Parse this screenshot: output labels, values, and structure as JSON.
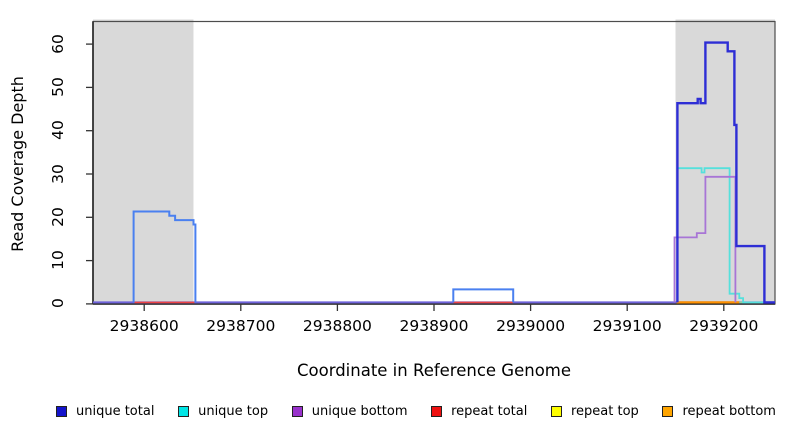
{
  "chart_data": {
    "type": "line",
    "subtype": "step-coverage",
    "title": "",
    "xlabel": "Coordinate in Reference Genome",
    "ylabel": "Read Coverage Depth",
    "xlim": [
      2938547,
      2939253
    ],
    "ylim": [
      0,
      60
    ],
    "xticks": [
      2938600,
      2938700,
      2938800,
      2938900,
      2939000,
      2939100,
      2939200
    ],
    "yticks": [
      0,
      10,
      20,
      30,
      40,
      50,
      60
    ],
    "grid": false,
    "legend_position": "bottom",
    "background_color": "#ffffff",
    "shading_color": "#d9d9d9",
    "shaded_regions": [
      {
        "name": "left-repeat-region",
        "x0": 2938547,
        "x1": 2938651
      },
      {
        "name": "right-repeat-region",
        "x0": 2939150,
        "x1": 2939253
      }
    ],
    "legend": [
      {
        "label": "unique total",
        "color": "#1414cc"
      },
      {
        "label": "unique top",
        "color": "#00e5e5"
      },
      {
        "label": "unique bottom",
        "color": "#9932cc"
      },
      {
        "label": "repeat total",
        "color": "#ee1111"
      },
      {
        "label": "repeat top",
        "color": "#ffff00"
      },
      {
        "label": "repeat bottom",
        "color": "#ffa500"
      }
    ],
    "lines": [
      {
        "name": "unique-bottom-baseline",
        "series": "unique bottom",
        "color": "#6e62d9",
        "width": 2,
        "points": [
          [
            2938547,
            0
          ],
          [
            2939253,
            0
          ]
        ]
      },
      {
        "name": "repeat-total-left-zero",
        "series": "repeat total",
        "color": "#ee4444",
        "width": 1.6,
        "points": [
          [
            2938590,
            0
          ],
          [
            2938652,
            0
          ]
        ]
      },
      {
        "name": "repeat-total-mid-zero",
        "series": "repeat total",
        "color": "#ee4444",
        "width": 1.6,
        "points": [
          [
            2938920,
            0
          ],
          [
            2938982,
            0
          ]
        ]
      },
      {
        "name": "repeat-bottom-right-zero",
        "series": "repeat bottom",
        "color": "#ff9100",
        "width": 2.2,
        "points": [
          [
            2939151,
            0
          ],
          [
            2939216,
            0
          ]
        ]
      },
      {
        "name": "zero-line-green-segment",
        "series": "repeat top",
        "color": "#8fd79a",
        "width": 1.6,
        "points": [
          [
            2939216,
            0
          ],
          [
            2939243,
            0
          ]
        ]
      },
      {
        "name": "unique-top-right",
        "series": "unique top",
        "color": "#55e0dc",
        "width": 1.8,
        "points": [
          [
            2939152,
            0
          ],
          [
            2939152,
            31
          ],
          [
            2939177,
            31
          ],
          [
            2939177,
            30
          ],
          [
            2939180,
            30
          ],
          [
            2939180,
            31
          ],
          [
            2939206,
            31
          ],
          [
            2939206,
            2
          ],
          [
            2939216,
            2
          ],
          [
            2939216,
            1
          ],
          [
            2939220,
            1
          ],
          [
            2939220,
            0
          ],
          [
            2939243,
            0
          ]
        ]
      },
      {
        "name": "unique-bottom-right",
        "series": "unique bottom",
        "color": "#a875d6",
        "width": 1.8,
        "points": [
          [
            2939149,
            0
          ],
          [
            2939149,
            15
          ],
          [
            2939172,
            15
          ],
          [
            2939172,
            16
          ],
          [
            2939181,
            16
          ],
          [
            2939181,
            29
          ],
          [
            2939212,
            29
          ],
          [
            2939212,
            0
          ]
        ]
      },
      {
        "name": "unique-total-left-hump",
        "series": "unique total",
        "color": "#4a80f0",
        "width": 2,
        "points": [
          [
            2938589,
            0
          ],
          [
            2938589,
            21
          ],
          [
            2938626,
            21
          ],
          [
            2938626,
            20
          ],
          [
            2938632,
            20
          ],
          [
            2938632,
            19
          ],
          [
            2938651,
            19
          ],
          [
            2938651,
            18
          ],
          [
            2938653,
            18
          ],
          [
            2938653,
            0
          ]
        ]
      },
      {
        "name": "unique-total-mid-bump",
        "series": "unique total",
        "color": "#4a80f0",
        "width": 2,
        "points": [
          [
            2938920,
            0
          ],
          [
            2938920,
            3
          ],
          [
            2938982,
            3
          ],
          [
            2938982,
            0
          ]
        ]
      },
      {
        "name": "unique-total-right",
        "series": "unique total",
        "color": "#2e2ed5",
        "width": 2.4,
        "points": [
          [
            2939152,
            0
          ],
          [
            2939152,
            46
          ],
          [
            2939173,
            46
          ],
          [
            2939173,
            47
          ],
          [
            2939176,
            47
          ],
          [
            2939176,
            46
          ],
          [
            2939181,
            46
          ],
          [
            2939181,
            60
          ],
          [
            2939204,
            60
          ],
          [
            2939204,
            58
          ],
          [
            2939211,
            58
          ],
          [
            2939211,
            41
          ],
          [
            2939213,
            41
          ],
          [
            2939213,
            13
          ],
          [
            2939242,
            13
          ],
          [
            2939242,
            0
          ],
          [
            2939253,
            0
          ]
        ]
      }
    ]
  }
}
